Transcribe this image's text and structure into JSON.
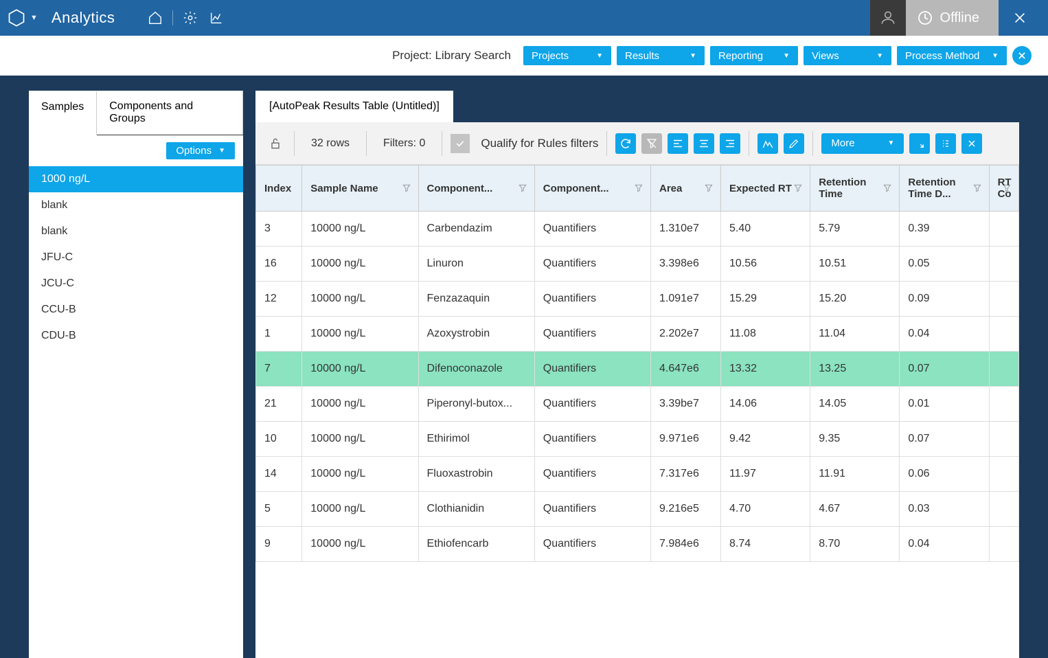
{
  "colors": {
    "titlebar": "#2165a3",
    "workspace": "#1d3a5a",
    "accent": "#0ea5e9",
    "highlight_row": "#8be3c0",
    "header_bg": "#e7f1f7",
    "gray_btn": "#b8b8b8",
    "user_box": "#3a3a3a"
  },
  "titlebar": {
    "app_name": "Analytics",
    "offline_label": "Offline"
  },
  "sub_toolbar": {
    "project_label": "Project: Library Search",
    "buttons": {
      "projects": "Projects",
      "results": "Results",
      "reporting": "Reporting",
      "views": "Views",
      "process_method": "Process Method"
    }
  },
  "left_panel": {
    "tabs": {
      "samples": "Samples",
      "components": "Components and Groups"
    },
    "options_label": "Options",
    "samples": [
      {
        "label": "1000 ng/L",
        "selected": true
      },
      {
        "label": "blank",
        "selected": false
      },
      {
        "label": "blank",
        "selected": false
      },
      {
        "label": "JFU-C",
        "selected": false
      },
      {
        "label": "JCU-C",
        "selected": false
      },
      {
        "label": "CCU-B",
        "selected": false
      },
      {
        "label": "CDU-B",
        "selected": false
      }
    ]
  },
  "main_panel": {
    "tab_title": "[AutoPeak Results Table (Untitled)]",
    "toolbar": {
      "row_count": "32 rows",
      "filters": "Filters: 0",
      "qualify": "Qualify for Rules filters",
      "more": "More"
    },
    "table": {
      "columns": [
        "Index",
        "Sample Name",
        "Component...",
        "Component...",
        "Area",
        "Expected RT",
        "Retention Time",
        "Retention Time D...",
        "RT Co"
      ],
      "rows": [
        {
          "index": "3",
          "sample": "10000 ng/L",
          "comp1": "Carbendazim",
          "comp2": "Quantifiers",
          "area": "1.310e7",
          "exprt": "5.40",
          "rt": "5.79",
          "rtd": "0.39",
          "highlight": false
        },
        {
          "index": "16",
          "sample": "10000 ng/L",
          "comp1": "Linuron",
          "comp2": "Quantifiers",
          "area": "3.398e6",
          "exprt": "10.56",
          "rt": "10.51",
          "rtd": "0.05",
          "highlight": false
        },
        {
          "index": "12",
          "sample": "10000 ng/L",
          "comp1": "Fenzazaquin",
          "comp2": "Quantifiers",
          "area": "1.091e7",
          "exprt": "15.29",
          "rt": "15.20",
          "rtd": "0.09",
          "highlight": false
        },
        {
          "index": "1",
          "sample": "10000 ng/L",
          "comp1": "Azoxystrobin",
          "comp2": "Quantifiers",
          "area": "2.202e7",
          "exprt": "11.08",
          "rt": "11.04",
          "rtd": "0.04",
          "highlight": false
        },
        {
          "index": "7",
          "sample": "10000 ng/L",
          "comp1": "Difenoconazole",
          "comp2": "Quantifiers",
          "area": "4.647e6",
          "exprt": "13.32",
          "rt": "13.25",
          "rtd": "0.07",
          "highlight": true
        },
        {
          "index": "21",
          "sample": "10000 ng/L",
          "comp1": "Piperonyl-butox...",
          "comp2": "Quantifiers",
          "area": "3.39be7",
          "exprt": "14.06",
          "rt": "14.05",
          "rtd": "0.01",
          "highlight": false
        },
        {
          "index": "10",
          "sample": "10000 ng/L",
          "comp1": "Ethirimol",
          "comp2": "Quantifiers",
          "area": "9.971e6",
          "exprt": "9.42",
          "rt": "9.35",
          "rtd": "0.07",
          "highlight": false
        },
        {
          "index": "14",
          "sample": "10000 ng/L",
          "comp1": "Fluoxastrobin",
          "comp2": "Quantifiers",
          "area": "7.317e6",
          "exprt": "11.97",
          "rt": "11.91",
          "rtd": "0.06",
          "highlight": false
        },
        {
          "index": "5",
          "sample": "10000 ng/L",
          "comp1": "Clothianidin",
          "comp2": "Quantifiers",
          "area": "9.216e5",
          "exprt": "4.70",
          "rt": "4.67",
          "rtd": "0.03",
          "highlight": false
        },
        {
          "index": "9",
          "sample": "10000 ng/L",
          "comp1": "Ethiofencarb",
          "comp2": "Quantifiers",
          "area": "7.984e6",
          "exprt": "8.74",
          "rt": "8.70",
          "rtd": "0.04",
          "highlight": false
        }
      ]
    }
  }
}
